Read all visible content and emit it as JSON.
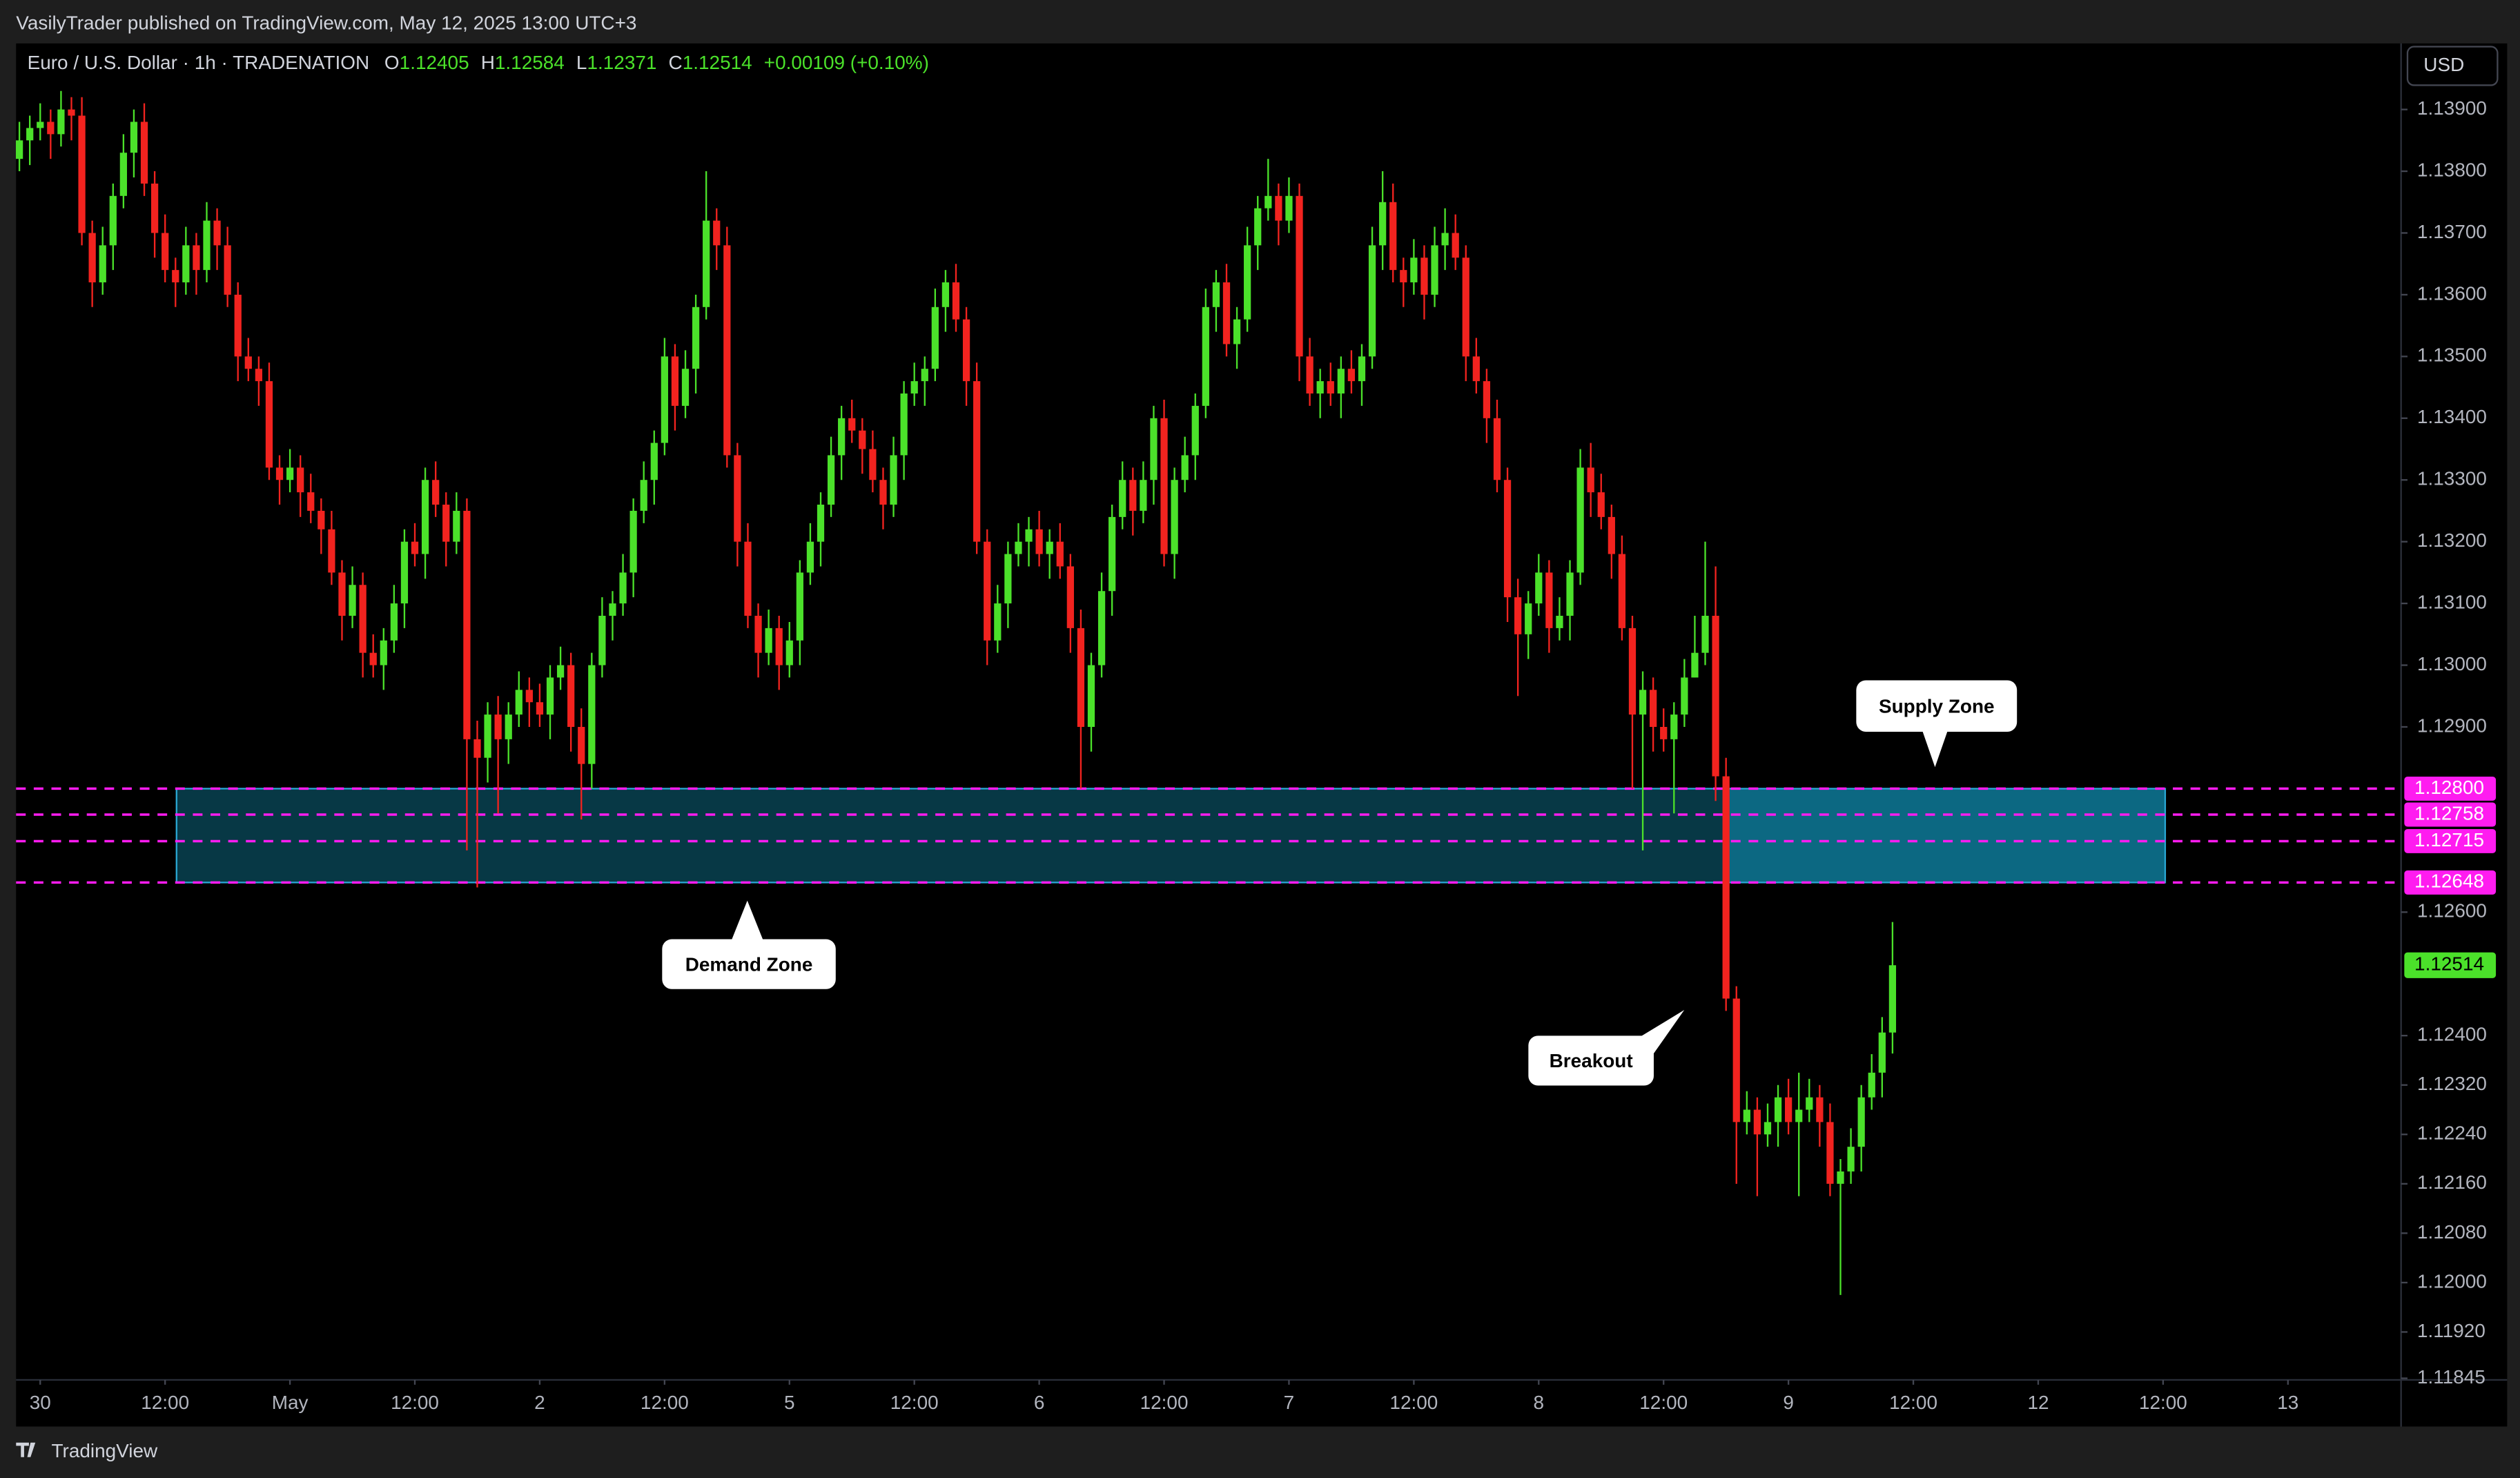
{
  "header": "VasilyTrader published on TradingView.com, May 12, 2025 13:00 UTC+3",
  "footer": "TradingView",
  "chart_data": {
    "type": "candlestick",
    "title": "Euro / U.S. Dollar · 1h · TRADENATION",
    "currency": "USD",
    "legend": {
      "names": [
        "O",
        "H",
        "L",
        "C"
      ],
      "values": [
        1.12405,
        1.12584,
        1.12371,
        1.12514
      ],
      "change": "+0.00109 (+0.10%)"
    },
    "up_color": "#4be12a",
    "down_color": "#f2231f",
    "ylim": [
      1.11845,
      1.14007
    ],
    "yticks": [
      {
        "value": 1.139,
        "label": "1.13900"
      },
      {
        "value": 1.138,
        "label": "1.13800"
      },
      {
        "value": 1.137,
        "label": "1.13700"
      },
      {
        "value": 1.136,
        "label": "1.13600"
      },
      {
        "value": 1.135,
        "label": "1.13500"
      },
      {
        "value": 1.134,
        "label": "1.13400"
      },
      {
        "value": 1.133,
        "label": "1.13300"
      },
      {
        "value": 1.132,
        "label": "1.13200"
      },
      {
        "value": 1.131,
        "label": "1.13100"
      },
      {
        "value": 1.13,
        "label": "1.13000"
      },
      {
        "value": 1.129,
        "label": "1.12900"
      },
      {
        "value": 1.126,
        "label": "1.12600"
      },
      {
        "value": 1.124,
        "label": "1.12400"
      },
      {
        "value": 1.1232,
        "label": "1.12320"
      },
      {
        "value": 1.1224,
        "label": "1.12240"
      },
      {
        "value": 1.1216,
        "label": "1.12160"
      },
      {
        "value": 1.1208,
        "label": "1.12080"
      },
      {
        "value": 1.12,
        "label": "1.12000"
      },
      {
        "value": 1.1192,
        "label": "1.11920"
      },
      {
        "value": 1.11845,
        "label": "1.11845"
      }
    ],
    "xlim": [
      -0.32,
      228.87
    ],
    "xticks": [
      {
        "value": 2,
        "label": "30"
      },
      {
        "value": 14,
        "label": "12:00"
      },
      {
        "value": 26,
        "label": "May"
      },
      {
        "value": 38,
        "label": "12:00"
      },
      {
        "value": 50,
        "label": "2"
      },
      {
        "value": 62,
        "label": "12:00"
      },
      {
        "value": 74,
        "label": "5"
      },
      {
        "value": 86,
        "label": "12:00"
      },
      {
        "value": 98,
        "label": "6"
      },
      {
        "value": 110,
        "label": "12:00"
      },
      {
        "value": 122,
        "label": "7"
      },
      {
        "value": 134,
        "label": "12:00"
      },
      {
        "value": 146,
        "label": "8"
      },
      {
        "value": 158,
        "label": "12:00"
      },
      {
        "value": 170,
        "label": "9"
      },
      {
        "value": 182,
        "label": "12:00"
      },
      {
        "value": 194,
        "label": "12"
      },
      {
        "value": 206,
        "label": "12:00"
      },
      {
        "value": 218,
        "label": "13"
      }
    ],
    "level_color": "#ff1cf0",
    "levels": [
      {
        "value": 1.128,
        "label": "1.12800"
      },
      {
        "value": 1.12758,
        "label": "1.12758"
      },
      {
        "value": 1.12715,
        "label": "1.12715"
      },
      {
        "value": 1.12648,
        "label": "1.12648"
      }
    ],
    "last_price": {
      "value": 1.12514,
      "label": "1.12514"
    },
    "zones": [
      {
        "name": "Demand Zone",
        "x": [
          15.1,
          163.9
        ],
        "range": [
          1.12648,
          1.128
        ],
        "color": "#073845"
      },
      {
        "name": "Supply Zone",
        "x": [
          163.9,
          206.2
        ],
        "range": [
          1.12648,
          1.128
        ],
        "color": "#0c6882"
      }
    ],
    "annotations": [
      "Demand Zone",
      "Supply Zone",
      "Breakout"
    ],
    "candles": [
      [
        1.1382,
        1.1388,
        1.138,
        1.1385
      ],
      [
        1.1385,
        1.1389,
        1.1381,
        1.1387
      ],
      [
        1.1387,
        1.1391,
        1.1385,
        1.1388
      ],
      [
        1.1388,
        1.139,
        1.1382,
        1.1386
      ],
      [
        1.1386,
        1.1393,
        1.1384,
        1.139
      ],
      [
        1.139,
        1.1392,
        1.1385,
        1.1389
      ],
      [
        1.1389,
        1.1392,
        1.1368,
        1.137
      ],
      [
        1.137,
        1.1372,
        1.1358,
        1.1362
      ],
      [
        1.1362,
        1.1371,
        1.136,
        1.1368
      ],
      [
        1.1368,
        1.1378,
        1.1364,
        1.1376
      ],
      [
        1.1376,
        1.1386,
        1.1374,
        1.1383
      ],
      [
        1.1383,
        1.139,
        1.1379,
        1.1388
      ],
      [
        1.1388,
        1.1391,
        1.1376,
        1.1378
      ],
      [
        1.1378,
        1.138,
        1.1366,
        1.137
      ],
      [
        1.137,
        1.1373,
        1.1362,
        1.1364
      ],
      [
        1.1364,
        1.1366,
        1.1358,
        1.1362
      ],
      [
        1.1362,
        1.1371,
        1.136,
        1.1368
      ],
      [
        1.1368,
        1.137,
        1.136,
        1.1364
      ],
      [
        1.1364,
        1.1375,
        1.1362,
        1.1372
      ],
      [
        1.1372,
        1.1374,
        1.1364,
        1.1368
      ],
      [
        1.1368,
        1.1371,
        1.1358,
        1.136
      ],
      [
        1.136,
        1.1362,
        1.1346,
        1.135
      ],
      [
        1.135,
        1.1353,
        1.1346,
        1.1348
      ],
      [
        1.1348,
        1.135,
        1.1342,
        1.1346
      ],
      [
        1.1346,
        1.1349,
        1.133,
        1.1332
      ],
      [
        1.1332,
        1.1334,
        1.1326,
        1.133
      ],
      [
        1.133,
        1.1335,
        1.1328,
        1.1332
      ],
      [
        1.1332,
        1.1334,
        1.1324,
        1.1328
      ],
      [
        1.1328,
        1.1331,
        1.1323,
        1.1325
      ],
      [
        1.1325,
        1.1327,
        1.1318,
        1.1322
      ],
      [
        1.1322,
        1.1325,
        1.1313,
        1.1315
      ],
      [
        1.1315,
        1.1317,
        1.1304,
        1.1308
      ],
      [
        1.1308,
        1.1316,
        1.1306,
        1.1313
      ],
      [
        1.1313,
        1.1315,
        1.1298,
        1.1302
      ],
      [
        1.1302,
        1.1305,
        1.1298,
        1.13
      ],
      [
        1.13,
        1.1306,
        1.1296,
        1.1304
      ],
      [
        1.1304,
        1.1313,
        1.1302,
        1.131
      ],
      [
        1.131,
        1.1322,
        1.1306,
        1.132
      ],
      [
        1.132,
        1.1323,
        1.1316,
        1.1318
      ],
      [
        1.1318,
        1.1332,
        1.1314,
        1.133
      ],
      [
        1.133,
        1.1333,
        1.1324,
        1.1326
      ],
      [
        1.1326,
        1.1328,
        1.1316,
        1.132
      ],
      [
        1.132,
        1.1328,
        1.1318,
        1.1325
      ],
      [
        1.1325,
        1.1327,
        1.127,
        1.1288
      ],
      [
        1.1288,
        1.1291,
        1.1264,
        1.1285
      ],
      [
        1.1285,
        1.1294,
        1.1281,
        1.1292
      ],
      [
        1.1292,
        1.1295,
        1.1276,
        1.1288
      ],
      [
        1.1288,
        1.1294,
        1.1284,
        1.1292
      ],
      [
        1.1292,
        1.1299,
        1.129,
        1.1296
      ],
      [
        1.1296,
        1.1298,
        1.129,
        1.1294
      ],
      [
        1.1294,
        1.1297,
        1.129,
        1.1292
      ],
      [
        1.1292,
        1.13,
        1.1288,
        1.1298
      ],
      [
        1.1298,
        1.1303,
        1.1296,
        1.13
      ],
      [
        1.13,
        1.1302,
        1.1286,
        1.129
      ],
      [
        1.129,
        1.1293,
        1.1275,
        1.1284
      ],
      [
        1.1284,
        1.1302,
        1.128,
        1.13
      ],
      [
        1.13,
        1.1311,
        1.1298,
        1.1308
      ],
      [
        1.1308,
        1.1312,
        1.1304,
        1.131
      ],
      [
        1.131,
        1.1318,
        1.1308,
        1.1315
      ],
      [
        1.1315,
        1.1327,
        1.1311,
        1.1325
      ],
      [
        1.1325,
        1.1333,
        1.1323,
        1.133
      ],
      [
        1.133,
        1.1338,
        1.1326,
        1.1336
      ],
      [
        1.1336,
        1.1353,
        1.1334,
        1.135
      ],
      [
        1.135,
        1.1352,
        1.1338,
        1.1342
      ],
      [
        1.1342,
        1.1351,
        1.134,
        1.1348
      ],
      [
        1.1348,
        1.136,
        1.1344,
        1.1358
      ],
      [
        1.1358,
        1.138,
        1.1356,
        1.1372
      ],
      [
        1.1372,
        1.1374,
        1.1364,
        1.1368
      ],
      [
        1.1368,
        1.1371,
        1.1332,
        1.1334
      ],
      [
        1.1334,
        1.1336,
        1.1316,
        1.132
      ],
      [
        1.132,
        1.1323,
        1.1306,
        1.1308
      ],
      [
        1.1308,
        1.131,
        1.1298,
        1.1302
      ],
      [
        1.1302,
        1.1309,
        1.13,
        1.1306
      ],
      [
        1.1306,
        1.1308,
        1.1296,
        1.13
      ],
      [
        1.13,
        1.1307,
        1.1298,
        1.1304
      ],
      [
        1.1304,
        1.1317,
        1.13,
        1.1315
      ],
      [
        1.1315,
        1.1323,
        1.1313,
        1.132
      ],
      [
        1.132,
        1.1328,
        1.1316,
        1.1326
      ],
      [
        1.1326,
        1.1337,
        1.1324,
        1.1334
      ],
      [
        1.1334,
        1.1342,
        1.133,
        1.134
      ],
      [
        1.134,
        1.1343,
        1.1336,
        1.1338
      ],
      [
        1.1338,
        1.134,
        1.1331,
        1.1335
      ],
      [
        1.1335,
        1.1338,
        1.1328,
        1.133
      ],
      [
        1.133,
        1.1332,
        1.1322,
        1.1326
      ],
      [
        1.1326,
        1.1337,
        1.1324,
        1.1334
      ],
      [
        1.1334,
        1.1346,
        1.133,
        1.1344
      ],
      [
        1.1344,
        1.1349,
        1.1342,
        1.1346
      ],
      [
        1.1346,
        1.135,
        1.1342,
        1.1348
      ],
      [
        1.1348,
        1.1361,
        1.1346,
        1.1358
      ],
      [
        1.1358,
        1.1364,
        1.1354,
        1.1362
      ],
      [
        1.1362,
        1.1365,
        1.1354,
        1.1356
      ],
      [
        1.1356,
        1.1358,
        1.1342,
        1.1346
      ],
      [
        1.1346,
        1.1349,
        1.1318,
        1.132
      ],
      [
        1.132,
        1.1322,
        1.13,
        1.1304
      ],
      [
        1.1304,
        1.1313,
        1.1302,
        1.131
      ],
      [
        1.131,
        1.132,
        1.1306,
        1.1318
      ],
      [
        1.1318,
        1.1323,
        1.1316,
        1.132
      ],
      [
        1.132,
        1.1324,
        1.1316,
        1.1322
      ],
      [
        1.1322,
        1.1325,
        1.1316,
        1.1318
      ],
      [
        1.1318,
        1.1322,
        1.1314,
        1.132
      ],
      [
        1.132,
        1.1323,
        1.1314,
        1.1316
      ],
      [
        1.1316,
        1.1318,
        1.1302,
        1.1306
      ],
      [
        1.1306,
        1.1309,
        1.128,
        1.129
      ],
      [
        1.129,
        1.1302,
        1.1286,
        1.13
      ],
      [
        1.13,
        1.1315,
        1.1298,
        1.1312
      ],
      [
        1.1312,
        1.1326,
        1.1308,
        1.1324
      ],
      [
        1.1324,
        1.1333,
        1.1322,
        1.133
      ],
      [
        1.133,
        1.1332,
        1.1321,
        1.1325
      ],
      [
        1.1325,
        1.1333,
        1.1323,
        1.133
      ],
      [
        1.133,
        1.1342,
        1.1326,
        1.134
      ],
      [
        1.134,
        1.1343,
        1.1316,
        1.1318
      ],
      [
        1.1318,
        1.1332,
        1.1314,
        1.133
      ],
      [
        1.133,
        1.1337,
        1.1328,
        1.1334
      ],
      [
        1.1334,
        1.1344,
        1.133,
        1.1342
      ],
      [
        1.1342,
        1.1361,
        1.134,
        1.1358
      ],
      [
        1.1358,
        1.1364,
        1.1354,
        1.1362
      ],
      [
        1.1362,
        1.1365,
        1.135,
        1.1352
      ],
      [
        1.1352,
        1.1358,
        1.1348,
        1.1356
      ],
      [
        1.1356,
        1.1371,
        1.1354,
        1.1368
      ],
      [
        1.1368,
        1.1376,
        1.1364,
        1.1374
      ],
      [
        1.1374,
        1.1382,
        1.1372,
        1.1376
      ],
      [
        1.1376,
        1.1378,
        1.1368,
        1.1372
      ],
      [
        1.1372,
        1.1379,
        1.137,
        1.1376
      ],
      [
        1.1376,
        1.1378,
        1.1346,
        1.135
      ],
      [
        1.135,
        1.1353,
        1.1342,
        1.1344
      ],
      [
        1.1344,
        1.1348,
        1.134,
        1.1346
      ],
      [
        1.1346,
        1.1349,
        1.1342,
        1.1344
      ],
      [
        1.1344,
        1.135,
        1.134,
        1.1348
      ],
      [
        1.1348,
        1.1351,
        1.1344,
        1.1346
      ],
      [
        1.1346,
        1.1352,
        1.1342,
        1.135
      ],
      [
        1.135,
        1.1371,
        1.1348,
        1.1368
      ],
      [
        1.1368,
        1.138,
        1.1364,
        1.1375
      ],
      [
        1.1375,
        1.1378,
        1.1362,
        1.1364
      ],
      [
        1.1364,
        1.1366,
        1.1358,
        1.1362
      ],
      [
        1.1362,
        1.1369,
        1.136,
        1.1366
      ],
      [
        1.1366,
        1.1368,
        1.1356,
        1.136
      ],
      [
        1.136,
        1.1371,
        1.1358,
        1.1368
      ],
      [
        1.1368,
        1.1374,
        1.1364,
        1.137
      ],
      [
        1.137,
        1.1373,
        1.1364,
        1.1366
      ],
      [
        1.1366,
        1.1368,
        1.1346,
        1.135
      ],
      [
        1.135,
        1.1353,
        1.1344,
        1.1346
      ],
      [
        1.1346,
        1.1348,
        1.1336,
        1.134
      ],
      [
        1.134,
        1.1343,
        1.1328,
        1.133
      ],
      [
        1.133,
        1.1332,
        1.1307,
        1.1311
      ],
      [
        1.1311,
        1.1314,
        1.1295,
        1.1305
      ],
      [
        1.1305,
        1.1312,
        1.1301,
        1.131
      ],
      [
        1.131,
        1.1318,
        1.1308,
        1.1315
      ],
      [
        1.1315,
        1.1317,
        1.1302,
        1.1306
      ],
      [
        1.1306,
        1.1311,
        1.1304,
        1.1308
      ],
      [
        1.1308,
        1.1317,
        1.1304,
        1.1315
      ],
      [
        1.1315,
        1.1335,
        1.1313,
        1.1332
      ],
      [
        1.1332,
        1.1336,
        1.1324,
        1.1328
      ],
      [
        1.1328,
        1.1331,
        1.1322,
        1.1324
      ],
      [
        1.1324,
        1.1326,
        1.1314,
        1.1318
      ],
      [
        1.1318,
        1.1321,
        1.1304,
        1.1306
      ],
      [
        1.1306,
        1.1308,
        1.128,
        1.1292
      ],
      [
        1.1292,
        1.1299,
        1.127,
        1.1296
      ],
      [
        1.1296,
        1.1298,
        1.1286,
        1.129
      ],
      [
        1.129,
        1.1293,
        1.1286,
        1.1288
      ],
      [
        1.1288,
        1.1294,
        1.1276,
        1.1292
      ],
      [
        1.1292,
        1.1301,
        1.129,
        1.1298
      ],
      [
        1.1298,
        1.1308,
        1.1298,
        1.1302
      ],
      [
        1.1302,
        1.132,
        1.13,
        1.1308
      ],
      [
        1.1308,
        1.1316,
        1.1278,
        1.1282
      ],
      [
        1.1282,
        1.1285,
        1.1244,
        1.1246
      ],
      [
        1.1246,
        1.1248,
        1.1216,
        1.1226
      ],
      [
        1.1226,
        1.1231,
        1.1224,
        1.1228
      ],
      [
        1.1228,
        1.123,
        1.1214,
        1.1224
      ],
      [
        1.1224,
        1.1229,
        1.1222,
        1.1226
      ],
      [
        1.1226,
        1.1232,
        1.1222,
        1.123
      ],
      [
        1.123,
        1.1233,
        1.1224,
        1.1226
      ],
      [
        1.1226,
        1.1234,
        1.1214,
        1.1228
      ],
      [
        1.1228,
        1.1233,
        1.1226,
        1.123
      ],
      [
        1.123,
        1.1232,
        1.1222,
        1.1226
      ],
      [
        1.1226,
        1.1229,
        1.1214,
        1.1216
      ],
      [
        1.1216,
        1.122,
        1.1198,
        1.1218
      ],
      [
        1.1218,
        1.1225,
        1.1216,
        1.1222
      ],
      [
        1.1222,
        1.1232,
        1.1218,
        1.123
      ],
      [
        1.123,
        1.1237,
        1.1228,
        1.1234
      ],
      [
        1.1234,
        1.1243,
        1.123,
        1.12405
      ],
      [
        1.12405,
        1.12584,
        1.12371,
        1.12514
      ]
    ]
  }
}
